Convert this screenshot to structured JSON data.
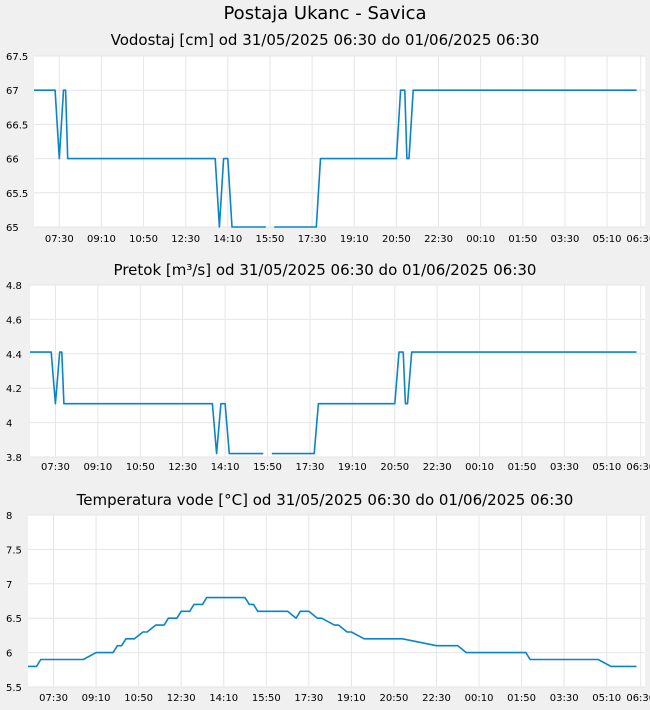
{
  "page": {
    "title": "Postaja Ukanc - Savica"
  },
  "colors": {
    "line": "#0a84c8",
    "grid": "#e6e6e6",
    "plot_bg": "#ffffff",
    "page_bg": "#f0f0f0"
  },
  "chart_data": [
    {
      "type": "line",
      "title": "Vodostaj [cm] od 31/05/2025 06:30 do 01/06/2025 06:30",
      "xlabel": "",
      "ylabel": "",
      "ylim": [
        65,
        67.5
      ],
      "yticks": [
        "65",
        "65.5",
        "66",
        "66.5",
        "67",
        "67.5"
      ],
      "xlim": [
        "06:30",
        "06:30 (+1)"
      ],
      "xticks": [
        "07:30",
        "09:10",
        "10:50",
        "12:30",
        "14:10",
        "15:50",
        "17:30",
        "19:10",
        "20:50",
        "22:30",
        "00:10",
        "01:50",
        "03:30",
        "05:10",
        "06:30"
      ],
      "grid": true,
      "series": [
        {
          "x": [
            "06:30",
            "07:20",
            "07:30",
            "07:40",
            "07:45",
            "07:50",
            "08:00",
            "13:40",
            "13:50",
            "14:00",
            "14:05",
            "14:10",
            "14:20",
            "15:40"
          ],
          "y": [
            67,
            67,
            66,
            67,
            67,
            66,
            66,
            66,
            65,
            66,
            66,
            66,
            65,
            65
          ]
        },
        {
          "x": [
            "16:00",
            "17:40",
            "17:50",
            "20:50",
            "21:00",
            "21:10",
            "21:15",
            "21:20",
            "21:30",
            "06:20 (+1)"
          ],
          "y": [
            65,
            65,
            66,
            66,
            67,
            67,
            66,
            66,
            67,
            67
          ]
        }
      ]
    },
    {
      "type": "line",
      "title": "Pretok [m³/s] od 31/05/2025 06:30 do 01/06/2025 06:30",
      "xlabel": "",
      "ylabel": "",
      "ylim": [
        3.8,
        4.8
      ],
      "yticks": [
        "3.8",
        "4",
        "4.2",
        "4.4",
        "4.6",
        "4.8"
      ],
      "xlim": [
        "06:30",
        "06:30 (+1)"
      ],
      "xticks": [
        "07:30",
        "09:10",
        "10:50",
        "12:30",
        "14:10",
        "15:50",
        "17:30",
        "19:10",
        "20:50",
        "22:30",
        "00:10",
        "01:50",
        "03:30",
        "05:10",
        "06:30"
      ],
      "grid": true,
      "series": [
        {
          "x": [
            "06:30",
            "07:20",
            "07:30",
            "07:40",
            "07:45",
            "07:50",
            "08:00",
            "13:40",
            "13:50",
            "14:00",
            "14:05",
            "14:10",
            "14:20",
            "15:40"
          ],
          "y": [
            4.41,
            4.41,
            4.11,
            4.41,
            4.41,
            4.11,
            4.11,
            4.11,
            3.82,
            4.11,
            4.11,
            4.11,
            3.82,
            3.82
          ]
        },
        {
          "x": [
            "16:00",
            "17:40",
            "17:50",
            "20:50",
            "21:00",
            "21:10",
            "21:15",
            "21:20",
            "21:30",
            "06:20 (+1)"
          ],
          "y": [
            3.82,
            3.82,
            4.11,
            4.11,
            4.41,
            4.41,
            4.11,
            4.11,
            4.41,
            4.41
          ]
        }
      ]
    },
    {
      "type": "line",
      "title": "Temperatura vode [°C] od 31/05/2025 06:30 do 01/06/2025 06:30",
      "xlabel": "",
      "ylabel": "",
      "ylim": [
        5.5,
        8
      ],
      "yticks": [
        "5.5",
        "6",
        "6.5",
        "7",
        "7.5",
        "8"
      ],
      "xlim": [
        "06:30",
        "06:30 (+1)"
      ],
      "xticks": [
        "07:30",
        "09:10",
        "10:50",
        "12:30",
        "14:10",
        "15:50",
        "17:30",
        "19:10",
        "20:50",
        "22:30",
        "00:10",
        "01:50",
        "03:30",
        "05:10",
        "06:30"
      ],
      "grid": true,
      "series": [
        {
          "x": [
            "06:30",
            "06:50",
            "07:00",
            "08:40",
            "09:10",
            "09:40",
            "09:50",
            "10:00",
            "10:10",
            "10:20",
            "10:30",
            "10:40",
            "11:00",
            "11:10",
            "11:30",
            "11:40",
            "11:50",
            "12:00",
            "12:20",
            "12:30",
            "12:50",
            "13:00",
            "13:20",
            "13:30",
            "14:00",
            "15:00",
            "15:10",
            "15:20",
            "15:30",
            "16:40",
            "17:00",
            "17:10",
            "17:30",
            "17:50",
            "18:00",
            "18:30",
            "18:40",
            "19:00",
            "19:10",
            "19:40",
            "19:50",
            "20:00",
            "20:10",
            "21:00",
            "21:10",
            "22:30",
            "22:40",
            "23:20",
            "23:40",
            "02:00",
            "02:10",
            "04:40",
            "04:50",
            "05:20",
            "06:20 (+1)"
          ],
          "y": [
            5.8,
            5.8,
            5.9,
            5.9,
            6.0,
            6.0,
            6.0,
            6.1,
            6.1,
            6.2,
            6.2,
            6.2,
            6.3,
            6.3,
            6.4,
            6.4,
            6.4,
            6.5,
            6.5,
            6.6,
            6.6,
            6.7,
            6.7,
            6.8,
            6.8,
            6.8,
            6.7,
            6.7,
            6.6,
            6.6,
            6.5,
            6.6,
            6.6,
            6.5,
            6.5,
            6.4,
            6.4,
            6.3,
            6.3,
            6.2,
            6.2,
            6.2,
            6.2,
            6.2,
            6.2,
            6.1,
            6.1,
            6.1,
            6.0,
            6.0,
            5.9,
            5.9,
            5.9,
            5.8,
            5.8
          ]
        }
      ]
    }
  ]
}
